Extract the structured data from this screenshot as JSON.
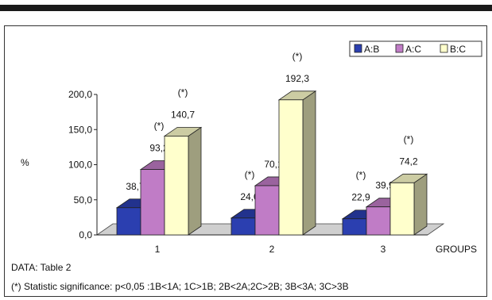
{
  "chart_data": {
    "type": "bar",
    "categories": [
      "1",
      "2",
      "3"
    ],
    "series": [
      {
        "name": "A:B",
        "values": [
          38.7,
          24.0,
          22.9
        ],
        "color": "#2b3fb0"
      },
      {
        "name": "A:C",
        "values": [
          93.2,
          70.1,
          39.9
        ],
        "color": "#c07cc6"
      },
      {
        "name": "B:C",
        "values": [
          140.7,
          192.3,
          74.2
        ],
        "color": "#ffffcc"
      }
    ],
    "value_labels": [
      [
        "38,7",
        "93,2",
        "140,7"
      ],
      [
        "24,0",
        "70,1",
        "192,3"
      ],
      [
        "22,9",
        "39,9",
        "74,2"
      ]
    ],
    "significance": [
      [
        false,
        true,
        true
      ],
      [
        true,
        false,
        true
      ],
      [
        true,
        false,
        true
      ]
    ],
    "significance_mark": "(*)",
    "yticks": [
      "0,0",
      "50,0",
      "100,0",
      "150,0",
      "200,0"
    ],
    "ylim": [
      0,
      200
    ],
    "ylabel": "%",
    "xlabel": "GROUPS",
    "legend": {
      "position": "top-right"
    },
    "grid": false,
    "chart_style": "3d-bar"
  },
  "footer": {
    "data_note": "DATA: Table 2",
    "significance_note": "(*) Statistic significance: p<0,05 :1B<1A; 1C>1B; 2B<2A;2C>2B; 3B<3A; 3C>3B"
  }
}
